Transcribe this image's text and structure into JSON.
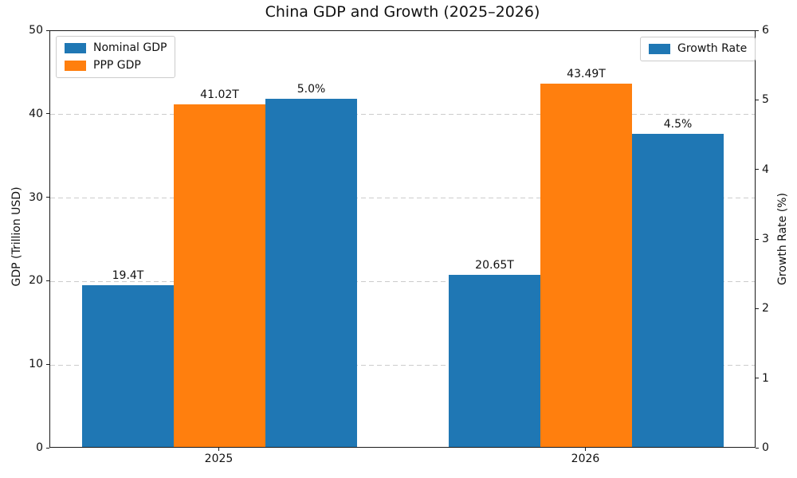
{
  "chart_data": {
    "type": "bar",
    "title": "China GDP and Growth (2025–2026)",
    "categories": [
      "2025",
      "2026"
    ],
    "series": [
      {
        "name": "Nominal GDP",
        "axis": "left",
        "color": "#1f77b4",
        "values": [
          19.4,
          20.65
        ],
        "bar_labels": [
          "19.4T",
          "20.65T"
        ]
      },
      {
        "name": "PPP GDP",
        "axis": "left",
        "color": "#ff7f0e",
        "values": [
          41.02,
          43.49
        ],
        "bar_labels": [
          "41.02T",
          "43.49T"
        ]
      },
      {
        "name": "Growth Rate",
        "axis": "right",
        "color": "#1f77b4",
        "values": [
          5.0,
          4.5
        ],
        "bar_labels": [
          "5.0%",
          "4.5%"
        ]
      }
    ],
    "left_axis": {
      "label": "GDP (Trillion USD)",
      "ticks": [
        0,
        10,
        20,
        30,
        40,
        50
      ],
      "range": [
        0,
        50
      ]
    },
    "right_axis": {
      "label": "Growth Rate (%)",
      "ticks": [
        0,
        1,
        2,
        3,
        4,
        5,
        6
      ],
      "range": [
        0,
        6
      ]
    },
    "legends": {
      "upper_left": [
        "Nominal GDP",
        "PPP GDP"
      ],
      "upper_right": [
        "Growth Rate"
      ]
    },
    "grid": {
      "axis": "y",
      "style": "dashed",
      "color": "#cccccc"
    }
  }
}
